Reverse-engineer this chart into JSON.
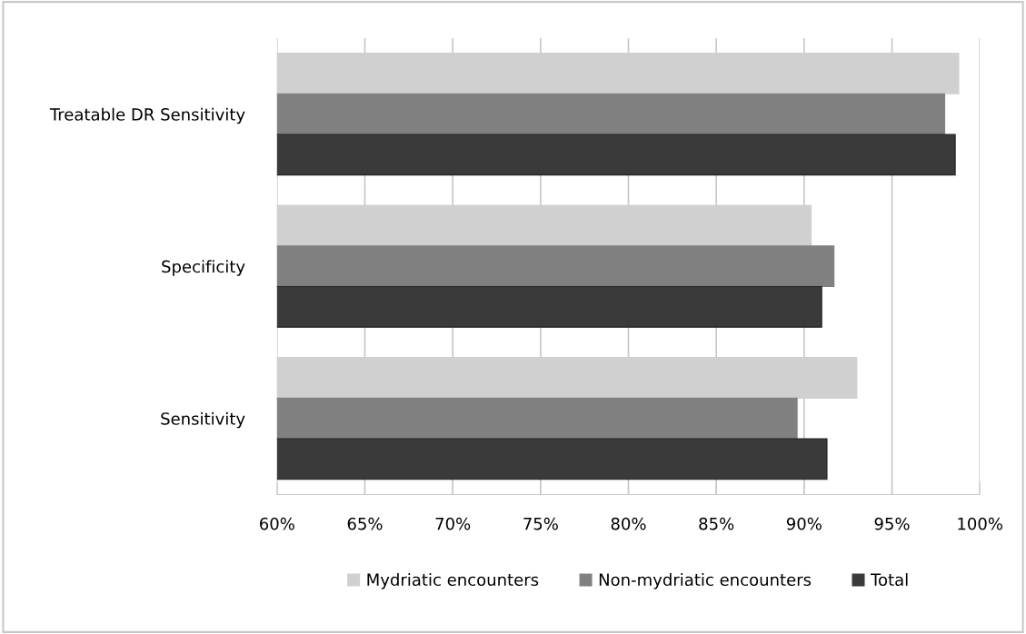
{
  "chart_data": {
    "type": "bar",
    "orientation": "horizontal",
    "categories": [
      "Treatable DR Sensitivity",
      "Specificity",
      "Sensitivity"
    ],
    "series": [
      {
        "name": "Mydriatic encounters",
        "color": "#d0d0d0",
        "values": [
          98.8,
          90.4,
          93.0
        ]
      },
      {
        "name": "Non-mydriatic encounters",
        "color": "#808080",
        "values": [
          98.0,
          91.7,
          89.6
        ]
      },
      {
        "name": "Total",
        "color": "#3a3a3a",
        "values": [
          98.6,
          91.0,
          91.3
        ]
      }
    ],
    "xlim": [
      60,
      100
    ],
    "xticks": [
      {
        "value": 60,
        "label": "60%"
      },
      {
        "value": 65,
        "label": "65%"
      },
      {
        "value": 70,
        "label": "70%"
      },
      {
        "value": 75,
        "label": "75%"
      },
      {
        "value": 80,
        "label": "80%"
      },
      {
        "value": 85,
        "label": "85%"
      },
      {
        "value": 90,
        "label": "90%"
      },
      {
        "value": 95,
        "label": "95%"
      },
      {
        "value": 100,
        "label": "100%"
      }
    ],
    "grid": "x",
    "legend": "bottom"
  }
}
